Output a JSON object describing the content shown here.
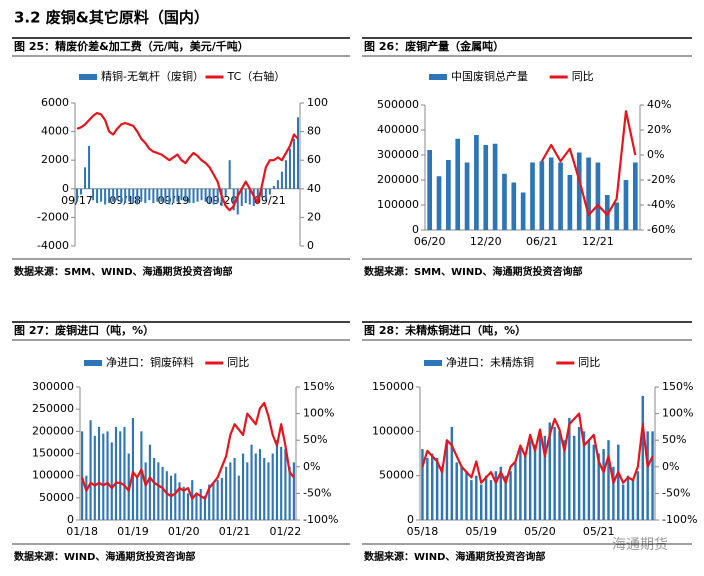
{
  "heading": "3.2 废铜&其它原料（国内）",
  "watermark": "海通期货",
  "chart_data": [
    {
      "type": "combo",
      "caption": "图 25：精废价差&加工费（元/吨，美元/千吨）",
      "source": "数据来源：SMM、WIND、海通期货投资咨询部",
      "categories": [
        "09/17",
        null,
        null,
        null,
        null,
        null,
        null,
        null,
        null,
        null,
        null,
        null,
        "09/18",
        null,
        null,
        null,
        null,
        null,
        null,
        null,
        null,
        null,
        null,
        null,
        "09/19",
        null,
        null,
        null,
        null,
        null,
        null,
        null,
        null,
        null,
        null,
        null,
        "09/20",
        null,
        null,
        null,
        null,
        null,
        null,
        null,
        null,
        null,
        null,
        null,
        "09/21",
        null,
        null,
        null,
        null,
        null,
        null,
        null
      ],
      "series": [
        {
          "name": "精铜-无氧杆（废铜）",
          "type": "bar",
          "color": "#2e75b6",
          "values": [
            -900,
            -400,
            1500,
            3000,
            -800,
            -1000,
            -900,
            -1100,
            -1000,
            -900,
            -800,
            -1000,
            -1000,
            -900,
            -1000,
            -1100,
            -900,
            -1000,
            -800,
            -1000,
            -900,
            -900,
            -1000,
            -1100,
            -1000,
            -900,
            -800,
            -900,
            -1000,
            -1000,
            -900,
            -800,
            -900,
            -1000,
            -1100,
            -1000,
            -1200,
            -500,
            2000,
            -1500,
            -1800,
            -1200,
            -1000,
            -1100,
            -1200,
            -900,
            -600,
            -800,
            -400,
            200,
            600,
            1200,
            2000,
            2800,
            3500,
            5000
          ]
        },
        {
          "name": "TC（右轴）",
          "type": "line",
          "axis": "y2",
          "color": "#e8141c",
          "values": [
            82,
            83,
            85,
            88,
            91,
            93,
            92,
            88,
            80,
            78,
            82,
            85,
            86,
            85,
            84,
            80,
            75,
            72,
            68,
            66,
            65,
            64,
            62,
            60,
            62,
            64,
            60,
            58,
            62,
            65,
            63,
            60,
            58,
            55,
            50,
            45,
            35,
            28,
            25,
            28,
            35,
            40,
            45,
            40,
            35,
            30,
            42,
            55,
            60,
            60,
            62,
            60,
            65,
            70,
            78,
            75
          ]
        }
      ],
      "ylim": [
        -4000,
        6000
      ],
      "yticks": [
        -4000,
        -2000,
        0,
        2000,
        4000,
        6000
      ],
      "y2lim": [
        0,
        100
      ],
      "y2ticks": [
        0,
        20,
        40,
        60,
        80,
        100
      ]
    },
    {
      "type": "combo",
      "caption": "图 26：废铜产量（金属吨）",
      "source": "数据来源：SMM、WIND、海通期货投资咨询部",
      "categories": [
        "06/20",
        null,
        null,
        null,
        null,
        null,
        "12/20",
        null,
        null,
        null,
        null,
        null,
        "06/21",
        null,
        null,
        null,
        null,
        null,
        "12/21",
        null,
        null,
        null,
        null
      ],
      "series": [
        {
          "name": "中国废铜总产量",
          "type": "bar",
          "color": "#2e75b6",
          "values": [
            320000,
            215000,
            280000,
            365000,
            270000,
            380000,
            340000,
            345000,
            225000,
            190000,
            150000,
            270000,
            275000,
            290000,
            270000,
            220000,
            310000,
            290000,
            270000,
            140000,
            110000,
            200000,
            270000
          ]
        },
        {
          "name": "同比",
          "type": "line",
          "axis": "y2",
          "color": "#e8141c",
          "values": [
            null,
            null,
            null,
            null,
            null,
            null,
            null,
            null,
            null,
            null,
            null,
            null,
            -5,
            8,
            -5,
            5,
            -20,
            -48,
            -40,
            -48,
            -35,
            35,
            0
          ]
        }
      ],
      "ylim": [
        0,
        500000
      ],
      "yticks": [
        0,
        100000,
        200000,
        300000,
        400000,
        500000
      ],
      "y2lim": [
        -60,
        40
      ],
      "y2ticks": [
        {
          "value": -60,
          "label": "-60%"
        },
        {
          "value": -40,
          "label": "-40%"
        },
        {
          "value": -20,
          "label": "-20%"
        },
        {
          "value": 0,
          "label": "0%"
        },
        {
          "value": 20,
          "label": "20%"
        },
        {
          "value": 40,
          "label": "40%"
        }
      ]
    },
    {
      "type": "combo",
      "caption": "图 27：废铜进口（吨，%）",
      "source": "数据来源：WIND、海通期货投资咨询部",
      "categories": [
        "01/18",
        null,
        null,
        null,
        null,
        null,
        null,
        null,
        null,
        null,
        null,
        null,
        "01/19",
        null,
        null,
        null,
        null,
        null,
        null,
        null,
        null,
        null,
        null,
        null,
        "01/20",
        null,
        null,
        null,
        null,
        null,
        null,
        null,
        null,
        null,
        null,
        null,
        "01/21",
        null,
        null,
        null,
        null,
        null,
        null,
        null,
        null,
        null,
        null,
        null,
        "01/22",
        null,
        null
      ],
      "series": [
        {
          "name": "净进口：铜废碎料",
          "type": "bar",
          "color": "#2e75b6",
          "values": [
            200000,
            100000,
            225000,
            190000,
            210000,
            195000,
            200000,
            175000,
            210000,
            200000,
            210000,
            150000,
            230000,
            100000,
            200000,
            130000,
            170000,
            140000,
            130000,
            120000,
            110000,
            100000,
            105000,
            85000,
            75000,
            60000,
            90000,
            60000,
            70000,
            55000,
            80000,
            85000,
            90000,
            95000,
            120000,
            130000,
            140000,
            100000,
            150000,
            130000,
            170000,
            150000,
            160000,
            140000,
            130000,
            150000,
            180000,
            165000,
            160000,
            120000,
            130000
          ]
        },
        {
          "name": "同比",
          "type": "line",
          "axis": "y2",
          "color": "#e8141c",
          "values": [
            -20,
            -45,
            -30,
            -35,
            -30,
            -35,
            -30,
            -40,
            -30,
            -30,
            -35,
            -45,
            -10,
            -20,
            -5,
            -35,
            -20,
            -30,
            -35,
            -40,
            -50,
            -55,
            -50,
            -40,
            -45,
            -40,
            -60,
            -50,
            -55,
            -60,
            -40,
            -30,
            -20,
            0,
            20,
            60,
            80,
            70,
            60,
            100,
            90,
            80,
            110,
            120,
            95,
            60,
            40,
            80,
            40,
            -10,
            -20
          ]
        }
      ],
      "ylim": [
        0,
        300000
      ],
      "yticks": [
        0,
        50000,
        100000,
        150000,
        200000,
        250000,
        300000
      ],
      "y2lim": [
        -100,
        150
      ],
      "y2ticks": [
        {
          "value": -100,
          "label": "-100%"
        },
        {
          "value": -50,
          "label": "-50%"
        },
        {
          "value": 0,
          "label": "0%"
        },
        {
          "value": 50,
          "label": "50%"
        },
        {
          "value": 100,
          "label": "100%"
        },
        {
          "value": 150,
          "label": "150%"
        }
      ]
    },
    {
      "type": "combo",
      "caption": "图 28：未精炼铜进口（吨，%）",
      "source": "数据来源：WIND、海通期货投资咨询部",
      "categories": [
        "05/18",
        null,
        null,
        null,
        null,
        null,
        null,
        null,
        null,
        null,
        null,
        null,
        "05/19",
        null,
        null,
        null,
        null,
        null,
        null,
        null,
        null,
        null,
        null,
        null,
        "05/20",
        null,
        null,
        null,
        null,
        null,
        null,
        null,
        null,
        null,
        null,
        null,
        "05/21",
        null,
        null,
        null,
        null,
        null,
        null,
        null,
        null,
        null,
        null,
        null
      ],
      "series": [
        {
          "name": "净进口：未精炼铜",
          "type": "bar",
          "color": "#2e75b6",
          "values": [
            80000,
            70000,
            75000,
            70000,
            60000,
            90000,
            105000,
            65000,
            60000,
            55000,
            45000,
            50000,
            40000,
            50000,
            45000,
            55000,
            60000,
            50000,
            55000,
            65000,
            80000,
            75000,
            90000,
            85000,
            100000,
            95000,
            110000,
            105000,
            100000,
            90000,
            115000,
            95000,
            105000,
            100000,
            90000,
            85000,
            75000,
            80000,
            90000,
            60000,
            85000,
            40000,
            50000,
            45000,
            55000,
            140000,
            100000,
            100000
          ]
        },
        {
          "name": "同比",
          "type": "line",
          "axis": "y2",
          "color": "#e8141c",
          "values": [
            0,
            30,
            20,
            10,
            -10,
            50,
            40,
            20,
            0,
            -10,
            -20,
            10,
            -30,
            -20,
            -10,
            -30,
            -10,
            -30,
            0,
            10,
            40,
            20,
            60,
            30,
            70,
            20,
            60,
            90,
            70,
            30,
            80,
            90,
            100,
            40,
            50,
            60,
            10,
            -10,
            20,
            -30,
            -10,
            -30,
            -20,
            -25,
            0,
            80,
            0,
            20
          ]
        }
      ],
      "ylim": [
        0,
        150000
      ],
      "yticks": [
        0,
        50000,
        100000,
        150000
      ],
      "y2lim": [
        -100,
        150
      ],
      "y2ticks": [
        {
          "value": -100,
          "label": "-100%"
        },
        {
          "value": -50,
          "label": "-50%"
        },
        {
          "value": 0,
          "label": "0%"
        },
        {
          "value": 50,
          "label": "50%"
        },
        {
          "value": 100,
          "label": "100%"
        },
        {
          "value": 150,
          "label": "150%"
        }
      ]
    }
  ]
}
